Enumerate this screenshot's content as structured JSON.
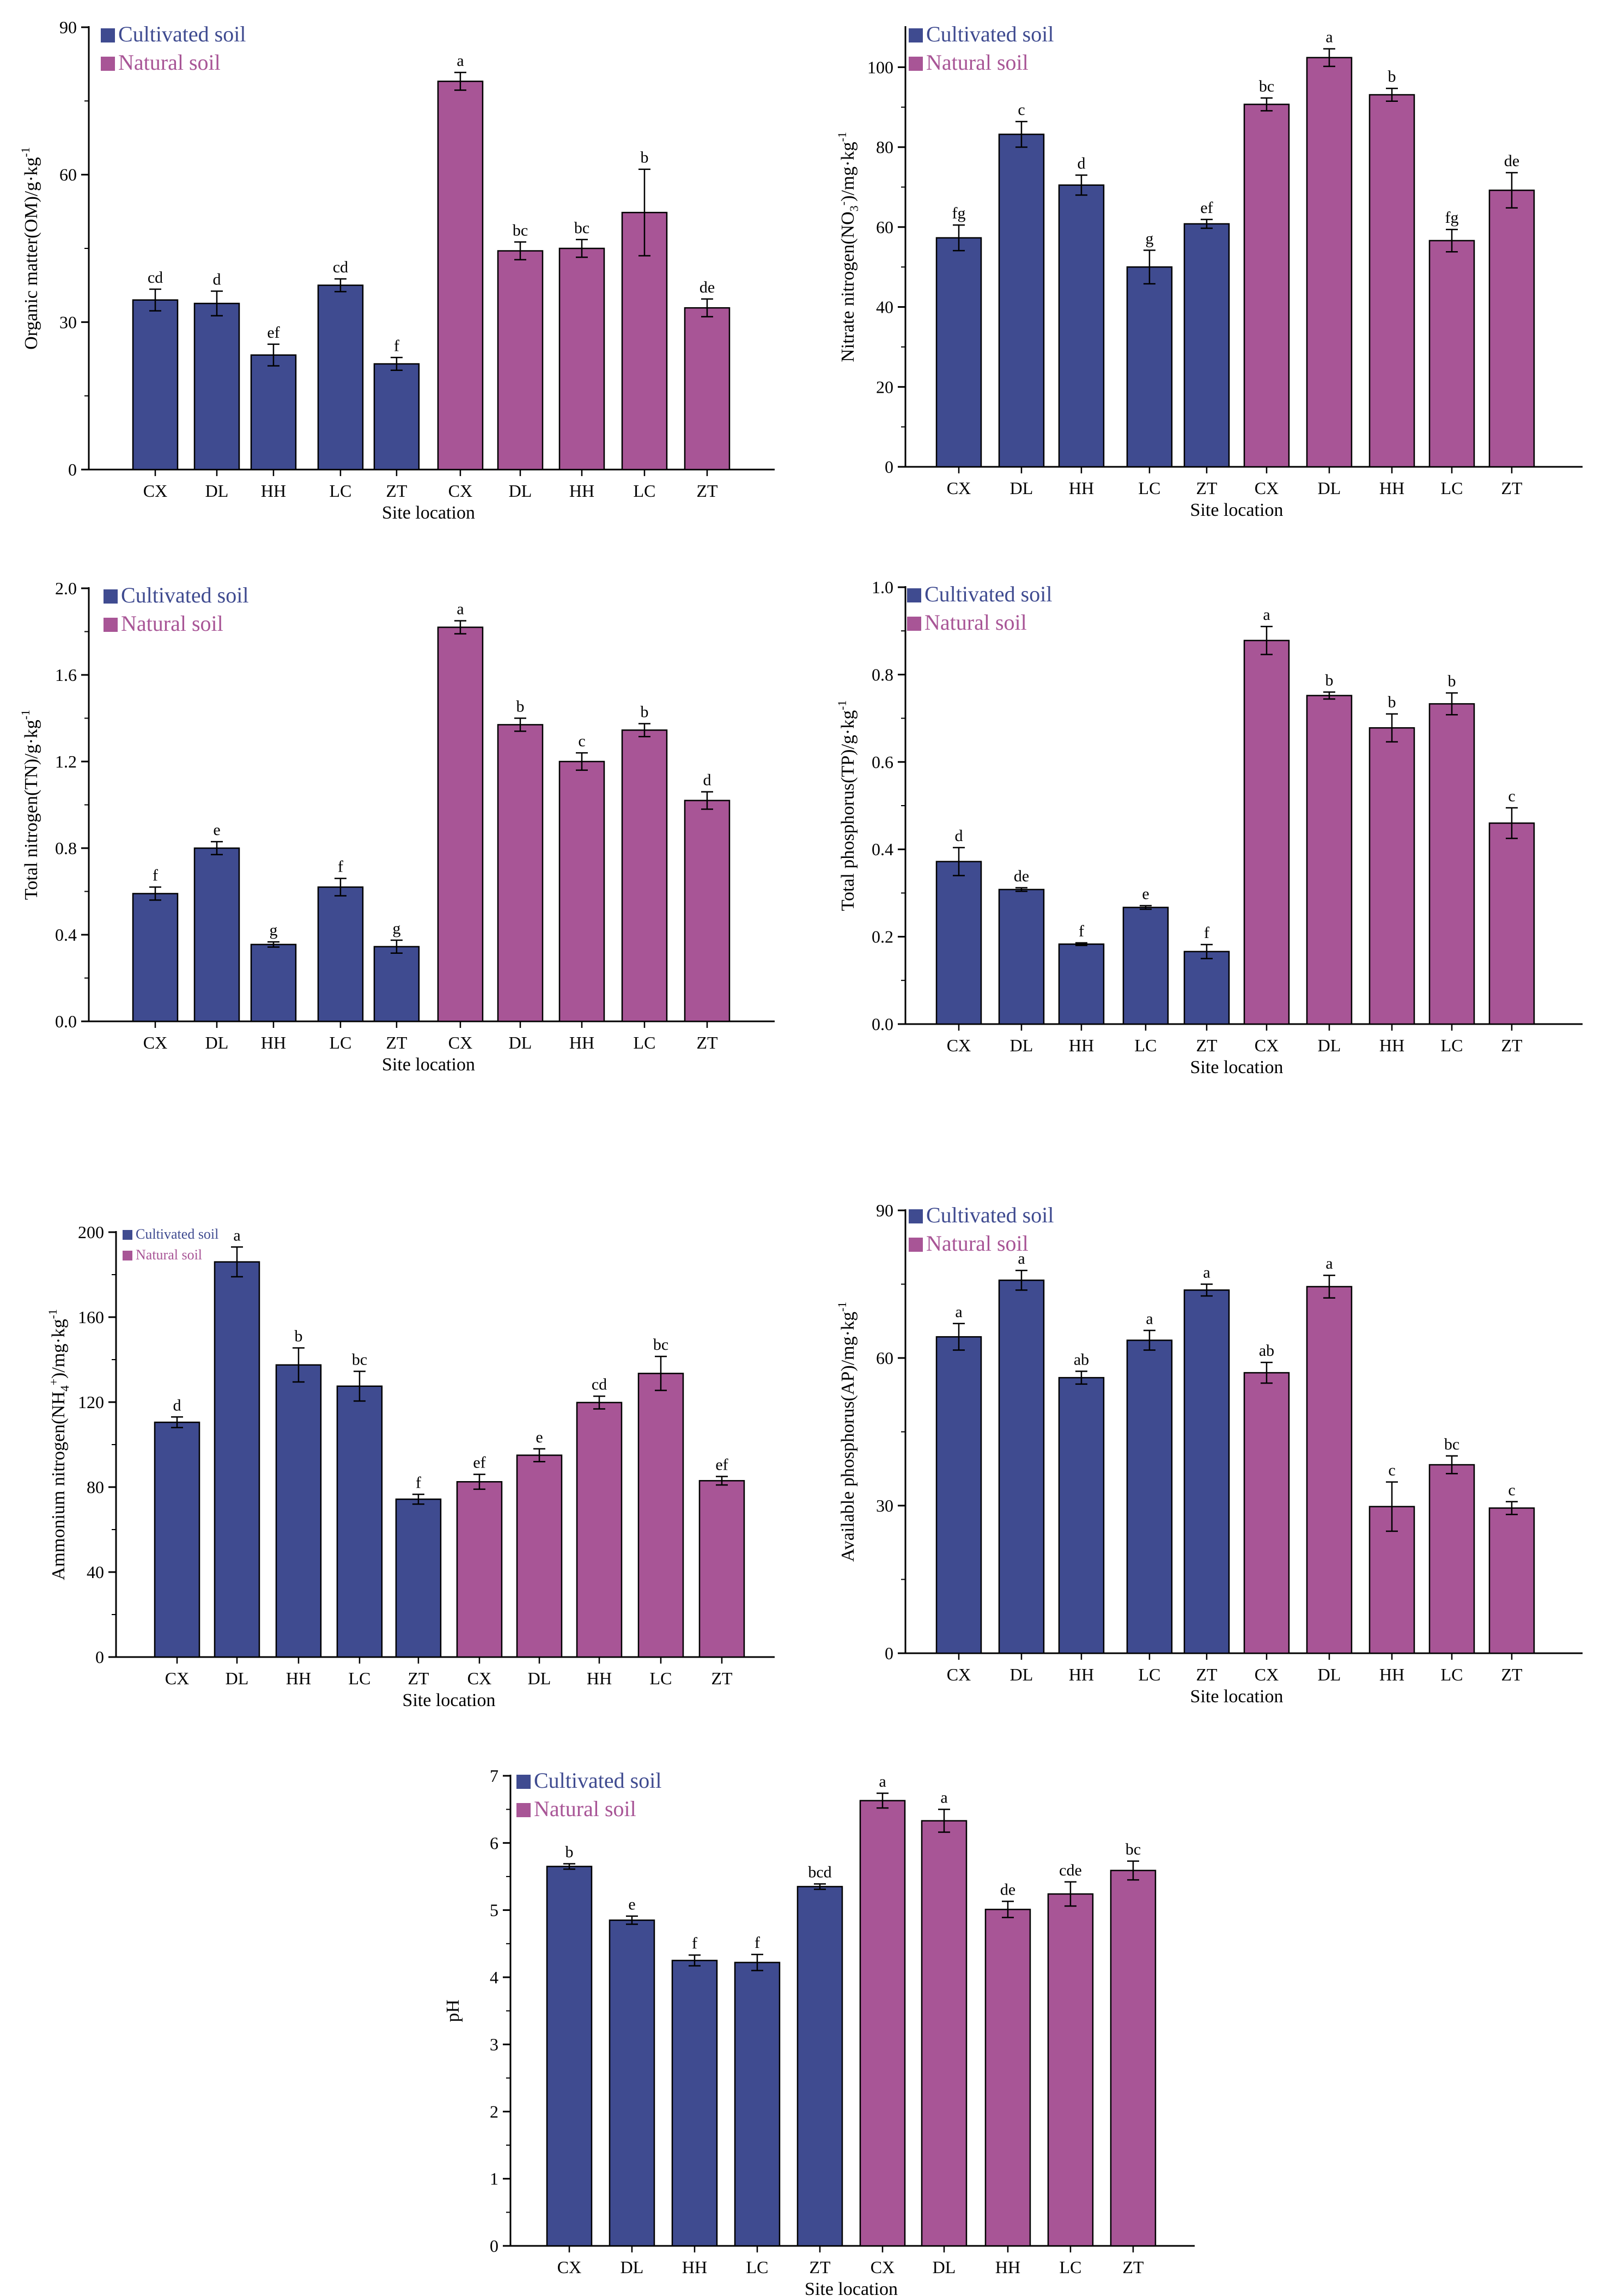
{
  "colors": {
    "cultivated": "#3f4b90",
    "natural": "#a85596",
    "axis": "#000000"
  },
  "legend": {
    "cultivated": "Cultivated soil",
    "natural": "Natural soil"
  },
  "chart_data": [
    {
      "id": "om",
      "type": "bar",
      "ylabel": "Organic matter(OM)/g·kg",
      "ylabel_sup": "-1",
      "xlabel": "Site location",
      "ylim": [
        0,
        90
      ],
      "yticks": [
        0,
        30,
        60,
        90
      ],
      "ytick_labels": [
        "0",
        "30",
        "60",
        "90"
      ],
      "categories": [
        "CX",
        "DL",
        "HH",
        "LC",
        "ZT",
        "CX",
        "DL",
        "HH",
        "LC",
        "ZT"
      ],
      "groups": [
        "cultivated",
        "cultivated",
        "cultivated",
        "cultivated",
        "cultivated",
        "natural",
        "natural",
        "natural",
        "natural",
        "natural"
      ],
      "values": [
        34.5,
        33.8,
        23.3,
        37.5,
        21.5,
        79.0,
        44.5,
        45.0,
        52.3,
        32.9
      ],
      "errors": [
        2.2,
        2.5,
        2.2,
        1.3,
        1.3,
        1.8,
        1.8,
        1.8,
        8.8,
        1.8
      ],
      "letters": [
        "cd",
        "d",
        "ef",
        "cd",
        "f",
        "a",
        "bc",
        "bc",
        "b",
        "de"
      ]
    },
    {
      "id": "no3",
      "type": "bar",
      "ylabel": "Nitrate nitrogen(NO",
      "ylabel_sub": "3",
      "ylabel_sup_ion": "-",
      "ylabel_tail": ")/mg·kg",
      "ylabel_sup": "-1",
      "xlabel": "Site location",
      "ylim": [
        0,
        110
      ],
      "yticks": [
        0,
        20,
        40,
        60,
        80,
        100
      ],
      "ytick_labels": [
        "0",
        "20",
        "40",
        "60",
        "80",
        "100"
      ],
      "categories": [
        "CX",
        "DL",
        "HH",
        "LC",
        "ZT",
        "CX",
        "DL",
        "HH",
        "LC",
        "ZT"
      ],
      "groups": [
        "cultivated",
        "cultivated",
        "cultivated",
        "cultivated",
        "cultivated",
        "natural",
        "natural",
        "natural",
        "natural",
        "natural"
      ],
      "values": [
        57.3,
        83.2,
        70.5,
        50.0,
        60.8,
        90.7,
        102.4,
        93.1,
        56.6,
        69.2
      ],
      "errors": [
        3.2,
        3.2,
        2.5,
        4.2,
        1.1,
        1.6,
        2.2,
        1.6,
        2.8,
        4.4
      ],
      "letters": [
        "fg",
        "c",
        "d",
        "g",
        "ef",
        "bc",
        "a",
        "b",
        "fg",
        "de"
      ]
    },
    {
      "id": "tn",
      "type": "bar",
      "ylabel": "Total nitrogen(TN)/g·kg",
      "ylabel_sup": "-1",
      "xlabel": "Site location",
      "ylim": [
        0,
        2.0
      ],
      "yticks": [
        0,
        0.4,
        0.8,
        1.2,
        1.6,
        2.0
      ],
      "ytick_labels": [
        "0.0",
        "0.4",
        "0.8",
        "1.2",
        "1.6",
        "2.0"
      ],
      "categories": [
        "CX",
        "DL",
        "HH",
        "LC",
        "ZT",
        "CX",
        "DL",
        "HH",
        "LC",
        "ZT"
      ],
      "groups": [
        "cultivated",
        "cultivated",
        "cultivated",
        "cultivated",
        "cultivated",
        "natural",
        "natural",
        "natural",
        "natural",
        "natural"
      ],
      "values": [
        0.59,
        0.8,
        0.355,
        0.62,
        0.345,
        1.82,
        1.37,
        1.2,
        1.345,
        1.02
      ],
      "errors": [
        0.03,
        0.03,
        0.012,
        0.04,
        0.03,
        0.03,
        0.03,
        0.04,
        0.03,
        0.04
      ],
      "letters": [
        "f",
        "e",
        "g",
        "f",
        "g",
        "a",
        "b",
        "c",
        "b",
        "d"
      ]
    },
    {
      "id": "tp",
      "type": "bar",
      "ylabel": "Total phosphorus(TP)/g·kg",
      "ylabel_sup": "-1",
      "xlabel": "Site location",
      "ylim": [
        0,
        1.0
      ],
      "yticks": [
        0,
        0.2,
        0.4,
        0.6,
        0.8,
        1.0
      ],
      "ytick_labels": [
        "0.0",
        "0.2",
        "0.4",
        "0.6",
        "0.8",
        "1.0"
      ],
      "categories": [
        "CX",
        "DL",
        "HH",
        "LC",
        "ZT",
        "CX",
        "DL",
        "HH",
        "LC",
        "ZT"
      ],
      "groups": [
        "cultivated",
        "cultivated",
        "cultivated",
        "cultivated",
        "cultivated",
        "natural",
        "natural",
        "natural",
        "natural",
        "natural"
      ],
      "values": [
        0.372,
        0.308,
        0.183,
        0.267,
        0.166,
        0.878,
        0.752,
        0.678,
        0.733,
        0.46
      ],
      "errors": [
        0.032,
        0.004,
        0.003,
        0.004,
        0.016,
        0.032,
        0.008,
        0.032,
        0.025,
        0.035
      ],
      "letters": [
        "d",
        "de",
        "f",
        "e",
        "f",
        "a",
        "b",
        "b",
        "b",
        "c"
      ]
    },
    {
      "id": "nh4",
      "type": "bar",
      "ylabel": "Ammonium nitrogen(NH",
      "ylabel_sub": "4",
      "ylabel_sup_ion": "+",
      "ylabel_tail": ")/mg·kg",
      "ylabel_sup": "-1",
      "xlabel": "Site location",
      "ylim": [
        0,
        200
      ],
      "yticks": [
        0,
        40,
        80,
        120,
        160,
        200
      ],
      "ytick_labels": [
        "0",
        "40",
        "80",
        "120",
        "160",
        "200"
      ],
      "categories": [
        "CX",
        "DL",
        "HH",
        "LC",
        "ZT",
        "CX",
        "DL",
        "HH",
        "LC",
        "ZT"
      ],
      "groups": [
        "cultivated",
        "cultivated",
        "cultivated",
        "cultivated",
        "cultivated",
        "natural",
        "natural",
        "natural",
        "natural",
        "natural"
      ],
      "values": [
        110.5,
        186.0,
        137.5,
        127.5,
        74.3,
        82.5,
        95.0,
        119.8,
        133.5,
        83.0
      ],
      "errors": [
        2.5,
        7.0,
        8.0,
        7.0,
        2.3,
        3.5,
        3.0,
        3.0,
        8.0,
        2.0
      ],
      "letters": [
        "d",
        "a",
        "b",
        "bc",
        "f",
        "ef",
        "e",
        "cd",
        "bc",
        "ef"
      ]
    },
    {
      "id": "ap",
      "type": "bar",
      "ylabel": "Available phosphorus(AP)/mg·kg",
      "ylabel_sup": "-1",
      "xlabel": "Site location",
      "ylim": [
        0,
        90
      ],
      "yticks": [
        0,
        30,
        60,
        90
      ],
      "ytick_labels": [
        "0",
        "30",
        "60",
        "90"
      ],
      "categories": [
        "CX",
        "DL",
        "HH",
        "LC",
        "ZT",
        "CX",
        "DL",
        "HH",
        "LC",
        "ZT"
      ],
      "groups": [
        "cultivated",
        "cultivated",
        "cultivated",
        "cultivated",
        "cultivated",
        "natural",
        "natural",
        "natural",
        "natural",
        "natural"
      ],
      "values": [
        64.3,
        75.8,
        56.0,
        63.6,
        73.8,
        57.0,
        74.5,
        29.8,
        38.3,
        29.5
      ],
      "errors": [
        2.7,
        2.0,
        1.3,
        2.0,
        1.2,
        2.1,
        2.3,
        5.0,
        1.8,
        1.3
      ],
      "letters": [
        "a",
        "a",
        "ab",
        "a",
        "a",
        "ab",
        "a",
        "c",
        "bc",
        "c"
      ]
    },
    {
      "id": "ph",
      "type": "bar",
      "ylabel": "pH",
      "ylabel_sup": "",
      "xlabel": "Site location",
      "ylim": [
        0,
        7
      ],
      "yticks": [
        0,
        1,
        2,
        3,
        4,
        5,
        6,
        7
      ],
      "ytick_labels": [
        "0",
        "1",
        "2",
        "3",
        "4",
        "5",
        "6",
        "7"
      ],
      "categories": [
        "CX",
        "DL",
        "HH",
        "LC",
        "ZT",
        "CX",
        "DL",
        "HH",
        "LC",
        "ZT"
      ],
      "groups": [
        "cultivated",
        "cultivated",
        "cultivated",
        "cultivated",
        "cultivated",
        "natural",
        "natural",
        "natural",
        "natural",
        "natural"
      ],
      "values": [
        5.65,
        4.85,
        4.25,
        4.22,
        5.35,
        6.63,
        6.33,
        5.01,
        5.24,
        5.59
      ],
      "errors": [
        0.04,
        0.06,
        0.08,
        0.12,
        0.04,
        0.11,
        0.17,
        0.12,
        0.18,
        0.14
      ],
      "letters": [
        "b",
        "e",
        "f",
        "f",
        "bcd",
        "a",
        "a",
        "de",
        "cde",
        "bc"
      ]
    }
  ]
}
